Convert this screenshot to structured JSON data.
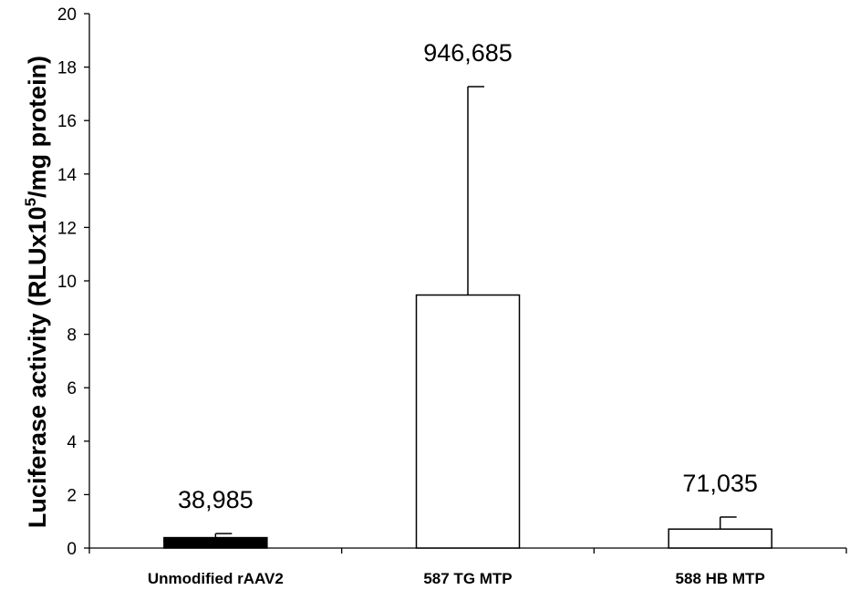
{
  "chart_data": {
    "type": "bar",
    "title": "",
    "xlabel": "",
    "ylabel": {
      "prefix": "Luciferase activity (RLUx10",
      "exponent": "5",
      "suffix": "/mg protein)"
    },
    "ylim": [
      0,
      20
    ],
    "yticks": [
      "0",
      "2",
      "4",
      "6",
      "8",
      "10",
      "12",
      "14",
      "16",
      "18",
      "20"
    ],
    "categories": [
      "Unmodified rAAV2",
      "587 TG MTP",
      "588 HB MTP"
    ],
    "values": [
      0.39,
      9.47,
      0.71
    ],
    "errors": [
      0.15,
      7.8,
      0.45
    ],
    "data_labels": [
      "38,985",
      "946,685",
      "71,035"
    ],
    "bar_fills": [
      "#000000",
      "#ffffff",
      "#ffffff"
    ],
    "grid": false,
    "legend": "none"
  }
}
